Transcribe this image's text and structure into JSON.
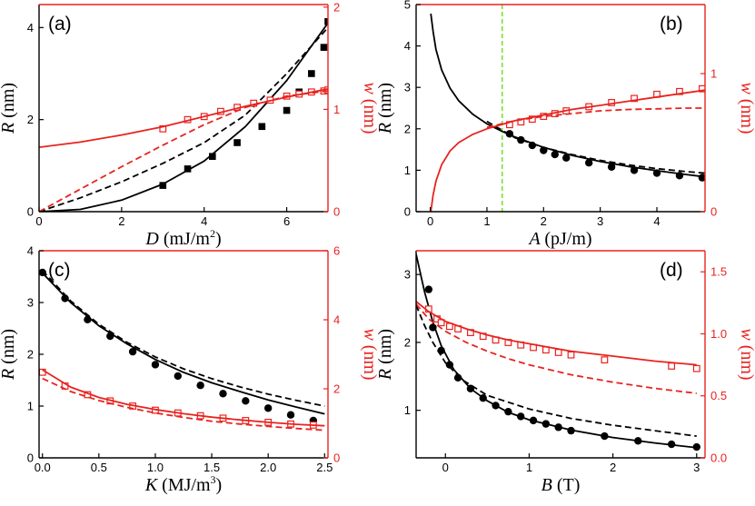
{
  "colors": {
    "black": "#000000",
    "red": "#e8231f",
    "green": "#77dd22"
  },
  "chart_data": [
    {
      "id": "a",
      "type": "line",
      "panel_label": "(a)",
      "xlabel": {
        "var": "D",
        "unit": "(mJ/m",
        "sup": "2",
        "close": ")"
      },
      "ylabel_left": {
        "var": "R",
        "unit": "(nm)"
      },
      "ylabel_right": {
        "var": "w",
        "unit": "(nm)"
      },
      "xlim": [
        0,
        7
      ],
      "ylim_left": [
        0,
        4.5
      ],
      "ylim_right": [
        0,
        2.025
      ],
      "xticks": [
        0,
        2,
        4,
        6
      ],
      "yticks_left": [
        0,
        2,
        4
      ],
      "yticks_right": [
        0,
        1,
        2
      ],
      "series": [
        {
          "name": "R simulation",
          "axis": "left",
          "kind": "markers",
          "marker": "square-filled",
          "color": "black",
          "x": [
            3.0,
            3.6,
            4.2,
            4.8,
            5.4,
            6.0,
            6.3,
            6.6,
            6.9,
            7.0
          ],
          "y": [
            0.57,
            0.93,
            1.2,
            1.5,
            1.85,
            2.2,
            2.6,
            3.0,
            3.57,
            4.13
          ]
        },
        {
          "name": "R model solid",
          "axis": "left",
          "kind": "solid",
          "color": "black",
          "x": [
            0,
            1,
            2,
            3,
            4,
            5,
            6,
            7
          ],
          "y": [
            0,
            0.05,
            0.25,
            0.6,
            1.1,
            1.85,
            2.85,
            4.1
          ]
        },
        {
          "name": "R model dashed",
          "axis": "left",
          "kind": "dashed",
          "color": "black",
          "x": [
            0,
            1,
            2,
            3,
            4,
            5,
            6,
            7
          ],
          "y": [
            0,
            0.3,
            0.65,
            1.05,
            1.5,
            2.1,
            3.0,
            4.0
          ]
        },
        {
          "name": "w simulation",
          "axis": "right",
          "kind": "markers",
          "marker": "square-open",
          "color": "red",
          "x": [
            3.0,
            3.6,
            4.0,
            4.4,
            4.8,
            5.2,
            5.6,
            6.0,
            6.3,
            6.6,
            6.9,
            7.0
          ],
          "y": [
            0.81,
            0.9,
            0.93,
            0.98,
            1.02,
            1.06,
            1.09,
            1.13,
            1.15,
            1.17,
            1.18,
            1.19
          ]
        },
        {
          "name": "w model solid",
          "axis": "right",
          "kind": "solid",
          "color": "red",
          "x": [
            0,
            1,
            2,
            3,
            4,
            5,
            6,
            7
          ],
          "y": [
            0.63,
            0.68,
            0.75,
            0.83,
            0.93,
            1.03,
            1.12,
            1.2
          ]
        },
        {
          "name": "w model dashed",
          "axis": "right",
          "kind": "dashed",
          "color": "red",
          "x": [
            0,
            1,
            2,
            3,
            4,
            5,
            6,
            7
          ],
          "y": [
            0,
            0.22,
            0.44,
            0.65,
            0.85,
            1.02,
            1.13,
            1.18
          ]
        }
      ]
    },
    {
      "id": "b",
      "type": "line",
      "panel_label": "(b)",
      "xlabel": {
        "var": "A",
        "unit": "(pJ/m)",
        "sup": "",
        "close": ""
      },
      "ylabel_left": {
        "var": "R",
        "unit": "(nm)"
      },
      "ylabel_right": {
        "var": "w",
        "unit": "(nm)"
      },
      "xlim": [
        -0.25,
        4.85
      ],
      "ylim_left": [
        0,
        5
      ],
      "ylim_right": [
        0,
        1.5
      ],
      "xticks": [
        0,
        1,
        2,
        3,
        4
      ],
      "yticks_left": [
        0,
        1,
        2,
        3,
        4,
        5
      ],
      "yticks_right": [
        0,
        1
      ],
      "vline": {
        "x": 1.27,
        "color": "green",
        "style": "dashed"
      },
      "series": [
        {
          "name": "R simulation",
          "axis": "left",
          "kind": "markers",
          "marker": "circle-filled",
          "color": "black",
          "x": [
            1.4,
            1.6,
            1.8,
            2.0,
            2.2,
            2.4,
            2.8,
            3.2,
            3.6,
            4.0,
            4.4,
            4.8
          ],
          "y": [
            1.88,
            1.73,
            1.6,
            1.48,
            1.38,
            1.3,
            1.18,
            1.08,
            1.0,
            0.93,
            0.87,
            0.82
          ]
        },
        {
          "name": "R model solid",
          "axis": "left",
          "kind": "solid",
          "color": "black",
          "x": [
            0.01,
            0.05,
            0.1,
            0.2,
            0.35,
            0.5,
            0.75,
            1.0,
            1.25,
            1.5,
            2.0,
            2.5,
            3.0,
            3.5,
            4.0,
            4.5,
            4.85
          ],
          "y": [
            4.78,
            4.35,
            3.92,
            3.42,
            2.98,
            2.68,
            2.35,
            2.12,
            1.95,
            1.8,
            1.55,
            1.36,
            1.21,
            1.09,
            0.99,
            0.9,
            0.84
          ]
        },
        {
          "name": "R model dashed",
          "axis": "left",
          "kind": "dashed",
          "color": "black",
          "x": [
            1.0,
            1.5,
            2.0,
            2.5,
            3.0,
            3.5,
            4.0,
            4.5,
            4.85
          ],
          "y": [
            2.18,
            1.78,
            1.55,
            1.38,
            1.24,
            1.13,
            1.04,
            0.97,
            0.93
          ]
        },
        {
          "name": "w simulation",
          "axis": "right",
          "kind": "markers",
          "marker": "square-open",
          "color": "red",
          "x": [
            1.4,
            1.6,
            1.8,
            2.0,
            2.2,
            2.4,
            2.8,
            3.2,
            3.6,
            4.0,
            4.4,
            4.8
          ],
          "y": [
            0.63,
            0.65,
            0.67,
            0.69,
            0.71,
            0.73,
            0.76,
            0.79,
            0.82,
            0.85,
            0.87,
            0.89
          ]
        },
        {
          "name": "w model solid",
          "axis": "right",
          "kind": "solid",
          "color": "red",
          "x": [
            0.01,
            0.05,
            0.1,
            0.2,
            0.35,
            0.5,
            0.75,
            1.0,
            1.25,
            1.5,
            2.0,
            2.5,
            3.0,
            3.5,
            4.0,
            4.5,
            4.85
          ],
          "y": [
            0.0,
            0.12,
            0.22,
            0.34,
            0.44,
            0.5,
            0.56,
            0.6,
            0.63,
            0.66,
            0.7,
            0.74,
            0.77,
            0.8,
            0.83,
            0.86,
            0.88
          ]
        },
        {
          "name": "w model dashed",
          "axis": "right",
          "kind": "dashed",
          "color": "red",
          "x": [
            1.0,
            1.5,
            2.0,
            2.5,
            3.0,
            3.5,
            4.0,
            4.5,
            4.85
          ],
          "y": [
            0.61,
            0.66,
            0.69,
            0.71,
            0.73,
            0.74,
            0.745,
            0.75,
            0.75
          ]
        }
      ]
    },
    {
      "id": "c",
      "type": "line",
      "panel_label": "(c)",
      "xlabel": {
        "var": "K",
        "unit": "(MJ/m",
        "sup": "3",
        "close": ")"
      },
      "ylabel_left": {
        "var": "R",
        "unit": "(nm)"
      },
      "ylabel_right": {
        "var": "w",
        "unit": "(nm)"
      },
      "xlim": [
        -0.03,
        2.53
      ],
      "ylim_left": [
        0,
        4
      ],
      "ylim_right": [
        0,
        6
      ],
      "xticks": [
        0.0,
        0.5,
        1.0,
        1.5,
        2.0,
        2.5
      ],
      "xtick_decimals": 1,
      "yticks_left": [
        0,
        1,
        2,
        3,
        4
      ],
      "yticks_right": [
        0,
        2,
        4,
        6
      ],
      "series": [
        {
          "name": "R simulation",
          "axis": "left",
          "kind": "markers",
          "marker": "circle-filled",
          "color": "black",
          "x": [
            0.0,
            0.2,
            0.4,
            0.6,
            0.8,
            1.0,
            1.2,
            1.4,
            1.6,
            1.8,
            2.0,
            2.2,
            2.4
          ],
          "y": [
            3.58,
            3.08,
            2.67,
            2.35,
            2.05,
            1.8,
            1.58,
            1.4,
            1.24,
            1.1,
            0.96,
            0.83,
            0.72
          ]
        },
        {
          "name": "R model solid",
          "axis": "left",
          "kind": "solid",
          "color": "black",
          "x": [
            0,
            0.25,
            0.5,
            0.75,
            1.0,
            1.25,
            1.5,
            1.75,
            2.0,
            2.25,
            2.5
          ],
          "y": [
            3.57,
            3.0,
            2.55,
            2.2,
            1.9,
            1.65,
            1.45,
            1.28,
            1.12,
            0.98,
            0.85
          ]
        },
        {
          "name": "R model dashed",
          "axis": "left",
          "kind": "dashed",
          "color": "black",
          "x": [
            0,
            0.25,
            0.5,
            0.75,
            1.0,
            1.25,
            1.5,
            1.75,
            2.0,
            2.25,
            2.5
          ],
          "y": [
            3.62,
            3.03,
            2.58,
            2.23,
            1.95,
            1.72,
            1.53,
            1.37,
            1.23,
            1.11,
            1.0
          ]
        },
        {
          "name": "w simulation",
          "axis": "right",
          "kind": "markers",
          "marker": "square-open",
          "color": "red",
          "x": [
            0.0,
            0.2,
            0.4,
            0.6,
            0.8,
            1.0,
            1.2,
            1.4,
            1.6,
            1.8,
            2.0,
            2.2,
            2.4
          ],
          "y": [
            2.48,
            2.08,
            1.83,
            1.65,
            1.5,
            1.38,
            1.3,
            1.22,
            1.15,
            1.08,
            1.03,
            0.98,
            0.95
          ]
        },
        {
          "name": "w model solid",
          "axis": "right",
          "kind": "solid",
          "color": "red",
          "x": [
            0,
            0.25,
            0.5,
            0.75,
            1.0,
            1.25,
            1.5,
            1.75,
            2.0,
            2.25,
            2.5
          ],
          "y": [
            2.55,
            2.05,
            1.75,
            1.55,
            1.4,
            1.28,
            1.18,
            1.1,
            1.03,
            0.97,
            0.93
          ]
        },
        {
          "name": "w model dashed",
          "axis": "right",
          "kind": "dashed",
          "color": "red",
          "x": [
            0,
            0.25,
            0.5,
            0.75,
            1.0,
            1.25,
            1.5,
            1.75,
            2.0,
            2.25,
            2.5
          ],
          "y": [
            2.3,
            1.92,
            1.66,
            1.46,
            1.3,
            1.17,
            1.06,
            0.98,
            0.91,
            0.85,
            0.8
          ]
        }
      ]
    },
    {
      "id": "d",
      "type": "line",
      "panel_label": "(d)",
      "xlabel": {
        "var": "B",
        "unit": "(T)",
        "sup": "",
        "close": ""
      },
      "ylabel_left": {
        "var": "R",
        "unit": "(nm)"
      },
      "ylabel_right": {
        "var": "w",
        "unit": "(nm)"
      },
      "xlim": [
        -0.35,
        3.1
      ],
      "ylim_left": [
        0.3,
        3.35
      ],
      "ylim_right": [
        0,
        1.67
      ],
      "xticks": [
        0,
        1,
        2,
        3
      ],
      "yticks_left": [
        1,
        2,
        3
      ],
      "yticks_right": [
        0.0,
        0.5,
        1.0,
        1.5
      ],
      "yticks_right_decimals": 1,
      "series": [
        {
          "name": "R simulation",
          "axis": "left",
          "kind": "markers",
          "marker": "circle-filled",
          "color": "black",
          "x": [
            -0.2,
            -0.15,
            -0.05,
            0.05,
            0.15,
            0.3,
            0.45,
            0.6,
            0.75,
            0.9,
            1.05,
            1.2,
            1.35,
            1.5,
            1.9,
            2.3,
            2.7,
            3.0
          ],
          "y": [
            2.78,
            2.22,
            1.88,
            1.67,
            1.48,
            1.32,
            1.18,
            1.07,
            0.98,
            0.91,
            0.85,
            0.8,
            0.75,
            0.7,
            0.62,
            0.55,
            0.5,
            0.46
          ]
        },
        {
          "name": "R model solid",
          "axis": "left",
          "kind": "solid",
          "color": "black",
          "x": [
            -0.35,
            -0.25,
            -0.15,
            -0.05,
            0.1,
            0.3,
            0.5,
            0.75,
            1.0,
            1.5,
            2.0,
            2.5,
            3.0
          ],
          "y": [
            3.3,
            2.75,
            2.3,
            1.95,
            1.6,
            1.32,
            1.14,
            0.97,
            0.86,
            0.71,
            0.6,
            0.52,
            0.45
          ]
        },
        {
          "name": "R model dashed",
          "axis": "left",
          "kind": "dashed",
          "color": "black",
          "x": [
            -0.35,
            -0.25,
            -0.15,
            0.0,
            0.2,
            0.5,
            1.0,
            1.5,
            2.0,
            2.5,
            3.0
          ],
          "y": [
            2.55,
            2.25,
            2.0,
            1.7,
            1.45,
            1.22,
            1.02,
            0.88,
            0.78,
            0.7,
            0.62
          ]
        },
        {
          "name": "w simulation",
          "axis": "right",
          "kind": "markers",
          "marker": "square-open",
          "color": "red",
          "x": [
            -0.2,
            -0.1,
            -0.05,
            0.05,
            0.15,
            0.3,
            0.45,
            0.6,
            0.75,
            0.9,
            1.05,
            1.2,
            1.35,
            1.5,
            1.9,
            2.7,
            3.0
          ],
          "y": [
            1.2,
            1.12,
            1.09,
            1.06,
            1.04,
            1.01,
            0.98,
            0.95,
            0.93,
            0.91,
            0.89,
            0.87,
            0.85,
            0.83,
            0.79,
            0.74,
            0.72
          ]
        },
        {
          "name": "w model solid",
          "axis": "right",
          "kind": "solid",
          "color": "red",
          "x": [
            -0.35,
            -0.2,
            0.0,
            0.25,
            0.5,
            0.75,
            1.0,
            1.5,
            2.0,
            2.5,
            3.0
          ],
          "y": [
            1.26,
            1.18,
            1.1,
            1.04,
            0.99,
            0.95,
            0.92,
            0.86,
            0.82,
            0.78,
            0.75
          ]
        },
        {
          "name": "w model dashed",
          "axis": "right",
          "kind": "dashed",
          "color": "red",
          "x": [
            -0.35,
            -0.2,
            0.0,
            0.25,
            0.5,
            0.75,
            1.0,
            1.5,
            2.0,
            2.5,
            3.0
          ],
          "y": [
            1.24,
            1.12,
            1.02,
            0.93,
            0.86,
            0.8,
            0.75,
            0.67,
            0.61,
            0.56,
            0.52
          ]
        }
      ]
    }
  ]
}
